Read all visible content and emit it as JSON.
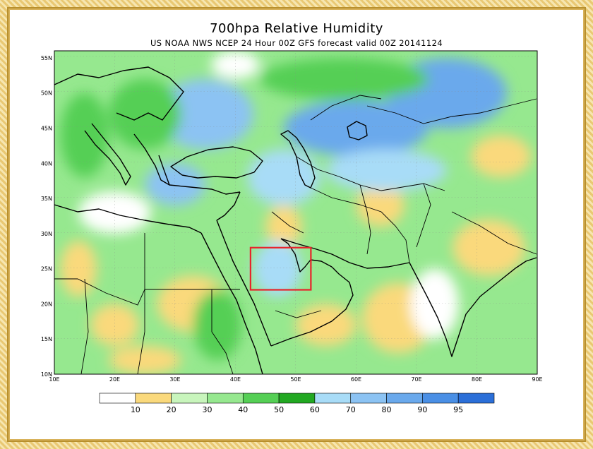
{
  "title": "700hpa Relative Humidity",
  "subtitle": "US NOAA NWS NCEP 24 Hour 00Z GFS forecast valid 00Z 20141124",
  "map": {
    "lon_range": [
      10,
      90
    ],
    "lat_range": [
      10,
      56
    ],
    "lon_ticks": [
      "10E",
      "20E",
      "30E",
      "40E",
      "50E",
      "60E",
      "70E",
      "80E",
      "90E"
    ],
    "lat_ticks": [
      "55N",
      "50N",
      "45N",
      "40N",
      "35N",
      "30N",
      "25N",
      "20N",
      "15N",
      "10N"
    ],
    "highlight_box": {
      "lon": [
        42.5,
        52.5
      ],
      "lat": [
        22,
        28
      ],
      "color": "#e8232a"
    }
  },
  "colorbar": {
    "labels": [
      "10",
      "20",
      "30",
      "40",
      "50",
      "60",
      "70",
      "80",
      "90",
      "95"
    ],
    "colors": [
      "#ffffff",
      "#fad97c",
      "#c8f5bc",
      "#96e88f",
      "#55cf55",
      "#22a822",
      "#a8dcf7",
      "#8cc3f3",
      "#6aa9ec",
      "#4a8fe5",
      "#2b6fd8"
    ]
  },
  "fields": {
    "dry": [
      {
        "lon": 14,
        "lat": 25,
        "r": [
          3,
          4
        ],
        "level": 1
      },
      {
        "lon": 20,
        "lat": 17,
        "r": [
          4,
          3
        ],
        "level": 1
      },
      {
        "lon": 33,
        "lat": 20,
        "r": [
          6,
          4
        ],
        "level": 1
      },
      {
        "lon": 55,
        "lat": 17,
        "r": [
          5,
          3
        ],
        "level": 1
      },
      {
        "lon": 67,
        "lat": 18,
        "r": [
          6,
          5
        ],
        "level": 1
      },
      {
        "lon": 73,
        "lat": 20,
        "r": [
          4,
          5
        ],
        "level": 0
      },
      {
        "lon": 64,
        "lat": 34,
        "r": [
          4,
          3
        ],
        "level": 1
      },
      {
        "lon": 82,
        "lat": 28,
        "r": [
          6,
          4
        ],
        "level": 1
      },
      {
        "lon": 84,
        "lat": 41,
        "r": [
          5,
          3
        ],
        "level": 1
      },
      {
        "lon": 25,
        "lat": 12,
        "r": [
          6,
          2
        ],
        "level": 1
      },
      {
        "lon": 48,
        "lat": 31,
        "r": [
          3,
          3
        ],
        "level": 1
      },
      {
        "lon": 40,
        "lat": 54,
        "r": [
          4,
          2
        ],
        "level": 0
      },
      {
        "lon": 20,
        "lat": 33,
        "r": [
          6,
          3
        ],
        "level": 0
      }
    ],
    "moist": [
      {
        "lon": 35,
        "lat": 47,
        "r": [
          8,
          5
        ],
        "level": 7
      },
      {
        "lon": 60,
        "lat": 45,
        "r": [
          12,
          4
        ],
        "level": 8
      },
      {
        "lon": 75,
        "lat": 50,
        "r": [
          10,
          5
        ],
        "level": 8
      },
      {
        "lon": 48,
        "lat": 38,
        "r": [
          6,
          4
        ],
        "level": 6
      },
      {
        "lon": 47,
        "lat": 25,
        "r": [
          4,
          4
        ],
        "level": 6
      },
      {
        "lon": 25,
        "lat": 47,
        "r": [
          6,
          5
        ],
        "level": 4
      },
      {
        "lon": 30,
        "lat": 37,
        "r": [
          5,
          3
        ],
        "level": 7
      },
      {
        "lon": 65,
        "lat": 39,
        "r": [
          10,
          3
        ],
        "level": 6
      },
      {
        "lon": 58,
        "lat": 52,
        "r": [
          14,
          3
        ],
        "level": 4
      },
      {
        "lon": 37,
        "lat": 17,
        "r": [
          4,
          5
        ],
        "level": 4
      },
      {
        "lon": 15,
        "lat": 44,
        "r": [
          4,
          6
        ],
        "level": 4
      }
    ]
  }
}
